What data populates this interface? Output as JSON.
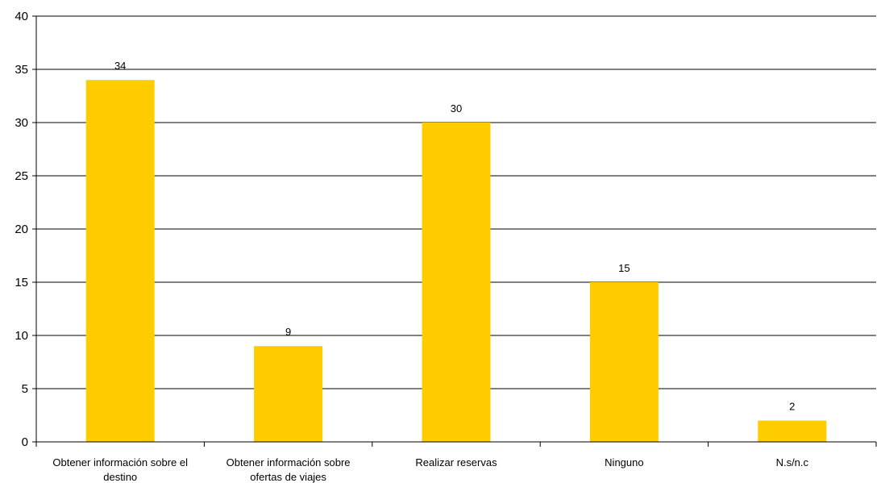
{
  "chart_data": {
    "type": "bar",
    "categories": [
      [
        "Obtener información sobre el",
        "destino"
      ],
      [
        "Obtener información sobre",
        "ofertas de viajes"
      ],
      [
        "Realizar reservas"
      ],
      [
        "Ninguno"
      ],
      [
        "N.s/n.c"
      ]
    ],
    "values": [
      34,
      9,
      30,
      15,
      2
    ],
    "ylim": [
      0,
      40
    ],
    "yticks": [
      0,
      5,
      10,
      15,
      20,
      25,
      30,
      35,
      40
    ],
    "grid": true,
    "legend": "none",
    "colors": {
      "bar": "#FFCC00",
      "grid": "#000000",
      "axis": "#000000"
    }
  }
}
